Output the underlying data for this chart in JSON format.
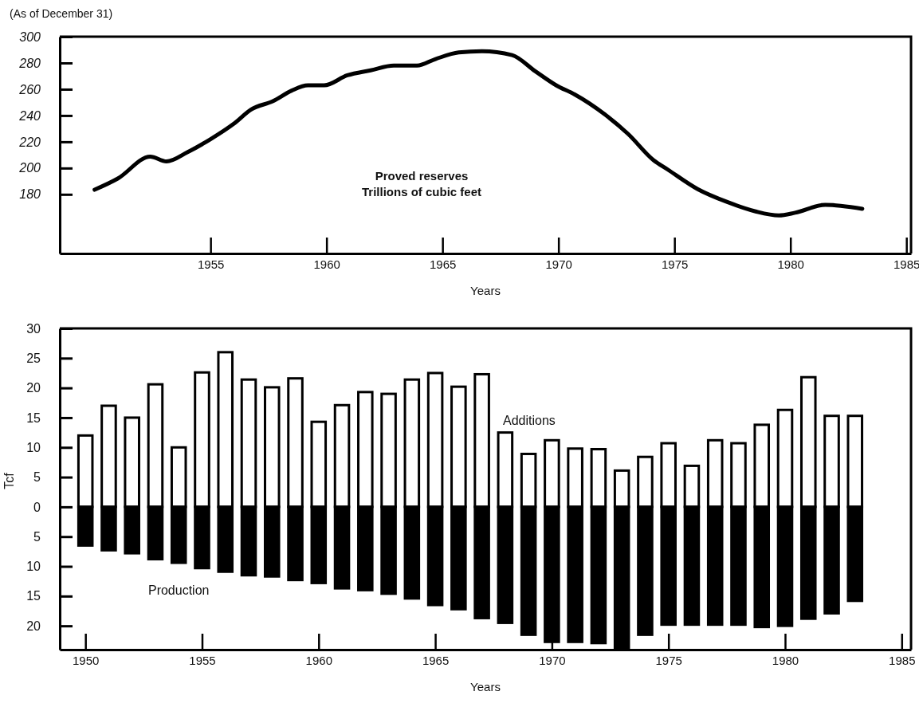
{
  "chart_data": [
    {
      "type": "line",
      "subtitle": "(As of December 31)",
      "xlabel": "Years",
      "annotations": [
        "Proved reserves",
        "Trillions of cubic feet"
      ],
      "xlim": [
        1948.5,
        1985.2
      ],
      "xticks": [
        1955,
        1960,
        1965,
        1970,
        1975,
        1980,
        1985
      ],
      "ylim": [
        135,
        300
      ],
      "yticks": [
        180,
        200,
        220,
        240,
        260,
        280,
        300
      ],
      "grid": false,
      "legend": false,
      "marker": "none",
      "line_style": "solid",
      "series": [
        {
          "color": "#000000",
          "x": [
            1950,
            1951,
            1952.4,
            1953.1,
            1954,
            1955,
            1956,
            1956.75,
            1957.7,
            1958.5,
            1959.2,
            1959.9,
            1960.9,
            1961.9,
            1962.9,
            1963.9,
            1964.7,
            1965.7,
            1966.7,
            1968,
            1969,
            1969.9,
            1970.7,
            1972,
            1973,
            1974.1,
            1974.7,
            1976,
            1977.3,
            1978.5,
            1979.5,
            1980.2,
            1981.5,
            1983.1
          ],
          "values": [
            183.5,
            192,
            208.7,
            205,
            212,
            222,
            233.7,
            244.6,
            251,
            259,
            263,
            263,
            270.6,
            274.4,
            278,
            278,
            283,
            288,
            289,
            286,
            273.7,
            263,
            256,
            240.8,
            226,
            206,
            199,
            184,
            174,
            167,
            164,
            166,
            172,
            169
          ]
        }
      ]
    },
    {
      "type": "bar",
      "stacked": true,
      "xlabel": "Years",
      "ylabel": "Tcf",
      "xlim": [
        1948.9,
        1985.4
      ],
      "xticks": [
        1950,
        1955,
        1960,
        1965,
        1970,
        1975,
        1980,
        1985
      ],
      "ylim": [
        -24,
        30
      ],
      "yticks": [
        {
          "value": -20,
          "label": "20"
        },
        {
          "value": -15,
          "label": "15"
        },
        {
          "value": -10,
          "label": "10"
        },
        {
          "value": -5,
          "label": "5"
        },
        0,
        5,
        10,
        15,
        20,
        25,
        30
      ],
      "grid": false,
      "legend": false,
      "x": [
        1950,
        1951,
        1952,
        1953,
        1954,
        1955,
        1956,
        1957,
        1958,
        1959,
        1960,
        1961,
        1962,
        1963,
        1964,
        1965,
        1966,
        1967,
        1968,
        1969,
        1970,
        1971,
        1972,
        1973,
        1974,
        1975,
        1976,
        1977,
        1978,
        1979,
        1980,
        1981,
        1982,
        1983
      ],
      "series": [
        {
          "name": "Additions",
          "color": "#ffffff",
          "values": [
            12,
            17,
            15,
            20.6,
            10,
            22.6,
            26,
            21.4,
            20.1,
            21.6,
            14.3,
            17.1,
            19.3,
            19,
            21.4,
            22.5,
            20.2,
            22.3,
            12.5,
            8.9,
            11.2,
            9.8,
            9.7,
            6.1,
            8.4,
            10.7,
            6.9,
            11.2,
            10.7,
            13.8,
            16.3,
            21.8,
            15.3,
            15.3
          ]
        },
        {
          "name": "Production",
          "color": "#000000",
          "values": [
            -6.5,
            -7.3,
            -7.8,
            -8.8,
            -9.4,
            -10.3,
            -10.9,
            -11.5,
            -11.7,
            -12.3,
            -12.8,
            -13.7,
            -14,
            -14.6,
            -15.4,
            -16.5,
            -17.2,
            -18.7,
            -19.5,
            -21.5,
            -22.7,
            -22.7,
            -22.9,
            -23.7,
            -21.5,
            -19.8,
            -19.8,
            -19.8,
            -19.8,
            -20.2,
            -20,
            -18.8,
            -17.9,
            -15.8
          ]
        }
      ]
    }
  ]
}
